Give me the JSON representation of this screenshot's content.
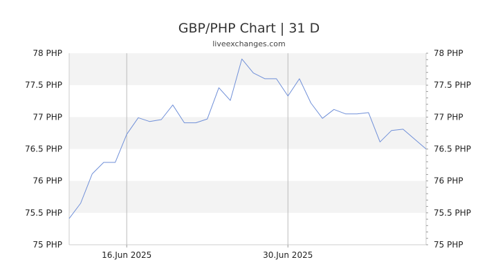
{
  "chart_data": {
    "type": "line",
    "title": "GBP/PHP Chart | 31 D",
    "subtitle": "liveexchanges.com",
    "y_ticks": [
      {
        "value": 78,
        "label": "78 PHP"
      },
      {
        "value": 77.5,
        "label": "77.5 PHP"
      },
      {
        "value": 77,
        "label": "77 PHP"
      },
      {
        "value": 76.5,
        "label": "76.5 PHP"
      },
      {
        "value": 76,
        "label": "76 PHP"
      },
      {
        "value": 75.5,
        "label": "75.5 PHP"
      },
      {
        "value": 75,
        "label": "75 PHP"
      }
    ],
    "x_ticks": [
      {
        "date": "2025-06-16",
        "label": "16.Jun 2025"
      },
      {
        "date": "2025-06-30",
        "label": "30.Jun 2025"
      }
    ],
    "ylim": [
      75,
      78
    ],
    "xlim": [
      "2025-06-11",
      "2025-07-12"
    ],
    "grid": "alternating horizontal bands, vertical lines at x ticks",
    "line_color": "#6f8fd8",
    "band_color": "#f3f3f3",
    "series": [
      {
        "points": [
          [
            "2025-06-11",
            75.41
          ],
          [
            "2025-06-12",
            75.65
          ],
          [
            "2025-06-13",
            76.11
          ],
          [
            "2025-06-14",
            76.29
          ],
          [
            "2025-06-15",
            76.29
          ],
          [
            "2025-06-16",
            76.73
          ],
          [
            "2025-06-17",
            76.99
          ],
          [
            "2025-06-18",
            76.93
          ],
          [
            "2025-06-19",
            76.96
          ],
          [
            "2025-06-20",
            77.19
          ],
          [
            "2025-06-21",
            76.91
          ],
          [
            "2025-06-22",
            76.91
          ],
          [
            "2025-06-23",
            76.97
          ],
          [
            "2025-06-24",
            77.46
          ],
          [
            "2025-06-25",
            77.26
          ],
          [
            "2025-06-26",
            77.91
          ],
          [
            "2025-06-27",
            77.69
          ],
          [
            "2025-06-28",
            77.6
          ],
          [
            "2025-06-29",
            77.6
          ],
          [
            "2025-06-30",
            77.33
          ],
          [
            "2025-07-01",
            77.6
          ],
          [
            "2025-07-02",
            77.22
          ],
          [
            "2025-07-03",
            76.98
          ],
          [
            "2025-07-04",
            77.12
          ],
          [
            "2025-07-05",
            77.05
          ],
          [
            "2025-07-06",
            77.05
          ],
          [
            "2025-07-07",
            77.07
          ],
          [
            "2025-07-08",
            76.61
          ],
          [
            "2025-07-09",
            76.79
          ],
          [
            "2025-07-10",
            76.81
          ],
          [
            "2025-07-12",
            76.5
          ]
        ]
      }
    ]
  }
}
